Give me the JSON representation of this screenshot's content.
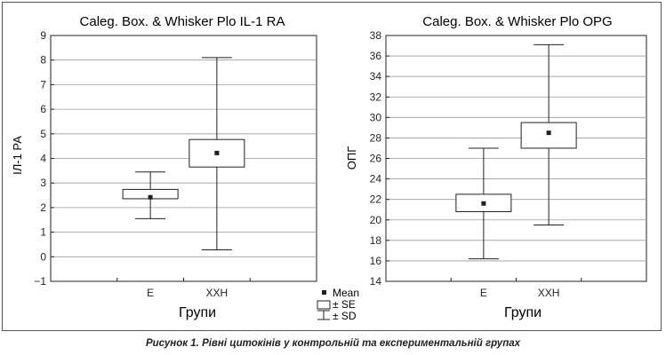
{
  "caption": "Рисунок 1. Рівні цитокінів у контрольній та експериментальній групах",
  "legend": {
    "mean_label": "Mean",
    "se_label": "± SE",
    "sd_label": "± SD"
  },
  "chart_data": [
    {
      "type": "box",
      "title": "Caleg. Box. & Whisker Plo IL-1 RA",
      "xlabel": "Групи",
      "ylabel": "ІЛ-1 РА",
      "ylim": [
        -1,
        9
      ],
      "yticks": [
        "9",
        "8",
        "7",
        "6",
        "5",
        "4",
        "3",
        "2",
        "1",
        "0",
        "−1"
      ],
      "categories": [
        "Е",
        "ХХН"
      ],
      "groups": [
        {
          "category": "Е",
          "mean": 2.42,
          "se_low": 2.36,
          "se_high": 2.74,
          "sd_low": 1.55,
          "sd_high": 3.45
        },
        {
          "category": "ХХН",
          "mean": 4.22,
          "se_low": 3.65,
          "se_high": 4.77,
          "sd_low": 0.28,
          "sd_high": 8.1
        }
      ],
      "grid": true
    },
    {
      "type": "box",
      "title": "Caleg. Box. & Whisker Plo OPG",
      "xlabel": "Групи",
      "ylabel": "ОПГ",
      "ylim": [
        14,
        38
      ],
      "yticks": [
        "38",
        "36",
        "34",
        "32",
        "30",
        "28",
        "26",
        "24",
        "22",
        "20",
        "18",
        "16",
        "14"
      ],
      "categories": [
        "Е",
        "ХХН"
      ],
      "groups": [
        {
          "category": "Е",
          "mean": 21.6,
          "se_low": 20.8,
          "se_high": 22.5,
          "sd_low": 16.2,
          "sd_high": 27.0
        },
        {
          "category": "ХХН",
          "mean": 28.5,
          "se_low": 27.0,
          "se_high": 29.5,
          "sd_low": 19.5,
          "sd_high": 37.1
        }
      ],
      "grid": true
    }
  ]
}
